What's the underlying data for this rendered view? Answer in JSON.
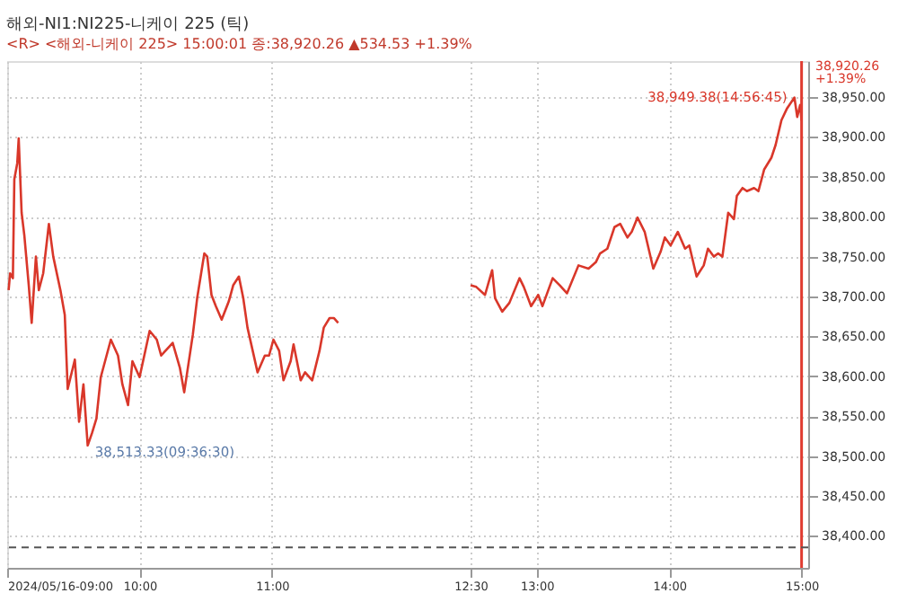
{
  "chart_data": {
    "type": "line",
    "title": "해외-NI1:NI225-니케이 225 (틱)",
    "subtitle": "<R> <해외-니케이 225> 15:00:01 종:38,920.26 ▲534.53 +1.39%",
    "x": [
      9.011,
      9.022,
      9.043,
      9.054,
      9.076,
      9.087,
      9.109,
      9.13,
      9.163,
      9.185,
      9.217,
      9.239,
      9.272,
      9.315,
      9.348,
      9.402,
      9.435,
      9.457,
      9.511,
      9.543,
      9.576,
      9.608,
      9.641,
      9.674,
      9.707,
      9.783,
      9.837,
      9.87,
      9.913,
      9.946,
      10.0,
      10.076,
      10.13,
      10.163,
      10.25,
      10.304,
      10.337,
      10.402,
      10.435,
      10.489,
      10.511,
      10.543,
      10.576,
      10.62,
      10.674,
      10.707,
      10.75,
      10.783,
      10.815,
      10.891,
      10.946,
      10.978,
      11.011,
      11.054,
      11.087,
      11.141,
      11.163,
      11.217,
      11.25,
      11.304,
      11.359,
      11.391,
      11.435,
      11.467,
      11.5,
      12.0,
      12.5,
      12.543,
      12.609,
      12.663,
      12.685,
      12.739,
      12.793,
      12.87,
      12.902,
      12.957,
      13.011,
      13.043,
      13.12,
      13.174,
      13.228,
      13.315,
      13.391,
      13.446,
      13.478,
      13.533,
      13.587,
      13.63,
      13.685,
      13.717,
      13.761,
      13.815,
      13.88,
      13.935,
      13.967,
      14.011,
      14.065,
      14.12,
      14.152,
      14.207,
      14.261,
      14.293,
      14.337,
      14.37,
      14.402,
      14.446,
      14.489,
      14.511,
      14.554,
      14.587,
      14.641,
      14.674,
      14.717,
      14.772,
      14.804,
      14.848,
      14.891,
      14.946,
      14.967,
      14.989,
      15.0
    ],
    "series": [
      {
        "color": "#d9372a",
        "values": [
          38708,
          38729,
          38723,
          38847,
          38867,
          38898,
          38805,
          38776,
          38714,
          38667,
          38750,
          38708,
          38729,
          38791,
          38750,
          38708,
          38677,
          38584,
          38621,
          38543,
          38590,
          38513.33,
          38529,
          38547,
          38599,
          38646,
          38626,
          38590,
          38564,
          38619,
          38599,
          38657,
          38646,
          38626,
          38642,
          38611,
          38580,
          38652,
          38698,
          38754,
          38750,
          38702,
          38688,
          38671,
          38694,
          38714,
          38725,
          38698,
          38661,
          38605,
          38626,
          38626,
          38646,
          38632,
          38595,
          38619,
          38640,
          38595,
          38605,
          38595,
          38632,
          38661,
          38673,
          38673,
          38667,
          null,
          38714,
          38712,
          38702,
          38733,
          38698,
          38681,
          38692,
          38723,
          38712,
          38688,
          38702,
          38688,
          38723,
          38714,
          38704,
          38739,
          38735,
          38743,
          38754,
          38760,
          38787,
          38791,
          38774,
          38781,
          38799,
          38781,
          38735,
          38756,
          38774,
          38764,
          38781,
          38760,
          38764,
          38725,
          38739,
          38760,
          38750,
          38754,
          38750,
          38805,
          38797,
          38826,
          38836,
          38832,
          38836,
          38832,
          38859,
          38874,
          38890,
          38921,
          38936,
          38949.38,
          38925,
          38940,
          38920.26
        ]
      }
    ],
    "xlim": [
      9,
      15.05
    ],
    "xticks": [
      {
        "value": 9,
        "label": "2024/05/16-09:00"
      },
      {
        "value": 10,
        "label": "10:00"
      },
      {
        "value": 11,
        "label": "11:00"
      },
      {
        "value": 12.5,
        "label": "12:30"
      },
      {
        "value": 13,
        "label": "13:00"
      },
      {
        "value": 14,
        "label": "14:00"
      },
      {
        "value": 15,
        "label": "15:00"
      }
    ],
    "ylim": [
      38360,
      38995
    ],
    "yticks": [
      {
        "value": 38400,
        "label": "38,400.00"
      },
      {
        "value": 38450,
        "label": "38,450.00"
      },
      {
        "value": 38500,
        "label": "38,500.00"
      },
      {
        "value": 38550,
        "label": "38,550.00"
      },
      {
        "value": 38600,
        "label": "38,600.00"
      },
      {
        "value": 38650,
        "label": "38,650.00"
      },
      {
        "value": 38700,
        "label": "38,700.00"
      },
      {
        "value": 38750,
        "label": "38,750.00"
      },
      {
        "value": 38800,
        "label": "38,800.00"
      },
      {
        "value": 38850,
        "label": "38,850.00"
      },
      {
        "value": 38900,
        "label": "38,900.00"
      },
      {
        "value": 38950,
        "label": "38,950.00"
      }
    ],
    "ref_lines": [
      {
        "axis": "x",
        "value": 15,
        "color": "#e03c31",
        "line_style": "solid"
      },
      {
        "axis": "y",
        "value": 38385.73,
        "color": "#555555",
        "line_style": "dashed"
      }
    ],
    "annotations": [
      {
        "text": "38,949.38(14:56:45)",
        "x": 14.946,
        "y": 38949.38
      },
      {
        "text": "38,513.33(09:36:30)",
        "x": 9.608,
        "y": 38513.33
      },
      {
        "text": "38,920.26\n+1.39%",
        "x": 15.05,
        "y": 38920.26
      }
    ],
    "grid": true,
    "legend": false,
    "marker": "none",
    "line_style": "solid"
  }
}
